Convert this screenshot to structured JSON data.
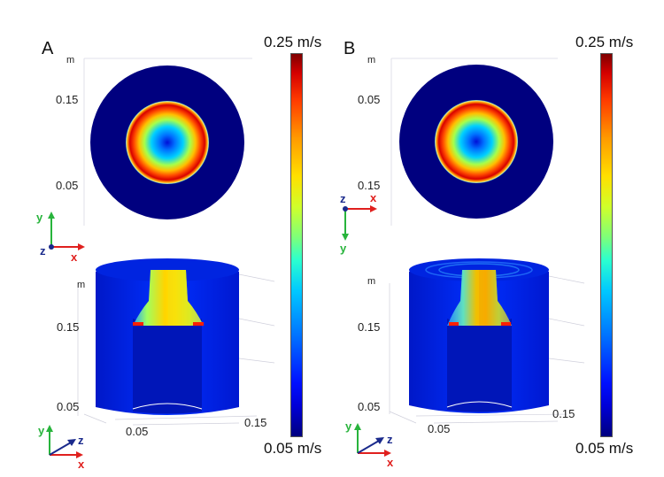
{
  "panels": [
    {
      "letter": "A",
      "top_unit": "m",
      "top_ticks": [
        "0.15",
        "0.05"
      ],
      "top_axes": {
        "a": "y",
        "b": "x",
        "c": "z"
      },
      "bottom_unit": "m",
      "bottom_ticks_left": [
        "0.15",
        "0.05"
      ],
      "bottom_ticks_base": [
        "0.05",
        "0.15"
      ],
      "bottom_axes": {
        "a": "y",
        "b": "x",
        "c": "z"
      }
    },
    {
      "letter": "B",
      "top_unit": "m",
      "top_ticks": [
        "0.05",
        "0.15"
      ],
      "top_axes": {
        "a": "z",
        "b": "x",
        "c": "y"
      },
      "bottom_unit": "m",
      "bottom_ticks_left": [
        "0.15",
        "0.05"
      ],
      "bottom_ticks_base": [
        "0.05",
        "0.15"
      ],
      "bottom_axes": {
        "a": "y",
        "b": "x",
        "c": "z"
      }
    }
  ],
  "colorbars": [
    {
      "max_label": "0.25 m/s",
      "min_label": "0.05 m/s"
    },
    {
      "max_label": "0.25 m/s",
      "min_label": "0.05 m/s"
    }
  ],
  "colors": {
    "x_axis": "#e0201e",
    "y_axis": "#28b43c",
    "z_axis": "#1a2a8c"
  }
}
